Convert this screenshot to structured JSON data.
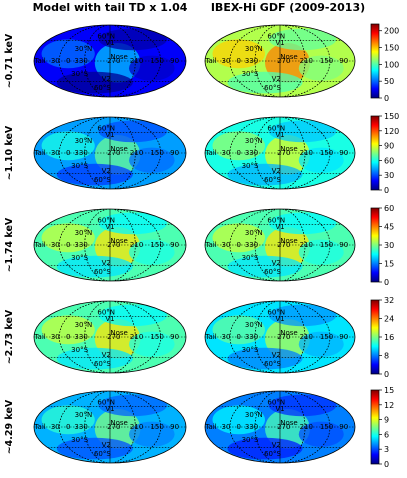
{
  "figure": {
    "columns": [
      {
        "title": "Model with tail TD x 1.04"
      },
      {
        "title": "IBEX-Hi GDF (2009-2013)"
      }
    ],
    "map_labels": {
      "lat_north_60": "60°N",
      "lat_north_30": "30°N",
      "lat_south_30": "30°S",
      "lat_south_60": "60°S",
      "nose": "Nose",
      "tail": "Tail",
      "longitudes": [
        "30",
        "0",
        "330",
        "270",
        "210",
        "150",
        "90"
      ],
      "v1": "V1",
      "v2": "V2"
    },
    "colors": {
      "colormap": [
        "#00007f",
        "#0000ff",
        "#007fff",
        "#00ffff",
        "#7fff7f",
        "#ffff00",
        "#ff7f00",
        "#ff0000",
        "#7f0000"
      ]
    }
  },
  "chart_data": [
    {
      "type": "heatmap",
      "projection": "mollweide",
      "row": "~0.71 keV",
      "colorbar": {
        "ticks": [
          0,
          50,
          100,
          150,
          200
        ],
        "range": [
          0,
          220
        ]
      },
      "panels": [
        {
          "title": "Model with tail TD x 1.04",
          "level": 0.12
        },
        {
          "title": "IBEX-Hi GDF (2009-2013)",
          "level": 0.55
        }
      ]
    },
    {
      "type": "heatmap",
      "projection": "mollweide",
      "row": "~1.10 keV",
      "colorbar": {
        "ticks": [
          0,
          30,
          60,
          90,
          120,
          150
        ],
        "range": [
          0,
          150
        ]
      },
      "panels": [
        {
          "title": "Model with tail TD x 1.04",
          "level": 0.28
        },
        {
          "title": "IBEX-Hi GDF (2009-2013)",
          "level": 0.4
        }
      ]
    },
    {
      "type": "heatmap",
      "projection": "mollweide",
      "row": "~1.74 keV",
      "colorbar": {
        "ticks": [
          0,
          15,
          30,
          45,
          60
        ],
        "range": [
          0,
          60
        ]
      },
      "panels": [
        {
          "title": "Model with tail TD x 1.04",
          "level": 0.45
        },
        {
          "title": "IBEX-Hi GDF (2009-2013)",
          "level": 0.45
        }
      ]
    },
    {
      "type": "heatmap",
      "projection": "mollweide",
      "row": "~2.73 keV",
      "colorbar": {
        "ticks": [
          0,
          8,
          16,
          24,
          32
        ],
        "range": [
          0,
          32
        ]
      },
      "panels": [
        {
          "title": "Model with tail TD x 1.04",
          "level": 0.45
        },
        {
          "title": "IBEX-Hi GDF (2009-2013)",
          "level": 0.35
        }
      ]
    },
    {
      "type": "heatmap",
      "projection": "mollweide",
      "row": "~4.29 keV",
      "colorbar": {
        "ticks": [
          0,
          3,
          6,
          9,
          12,
          15
        ],
        "range": [
          0,
          15
        ]
      },
      "panels": [
        {
          "title": "Model with tail TD x 1.04",
          "level": 0.3
        },
        {
          "title": "IBEX-Hi GDF (2009-2013)",
          "level": 0.25
        }
      ]
    }
  ]
}
